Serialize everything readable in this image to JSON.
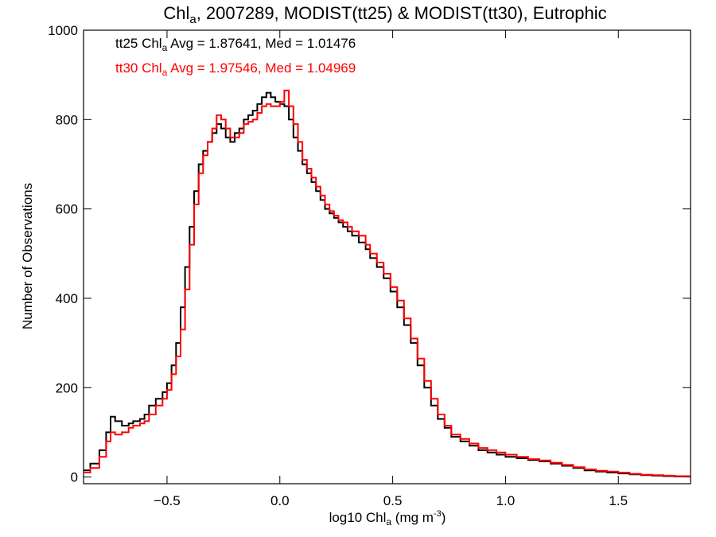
{
  "chart_data": {
    "type": "line",
    "title": {
      "pre": "Chl",
      "sub": "a",
      "post": ", 2007289, MODIST(tt25) & MODIST(tt30), Eutrophic"
    },
    "xlabel": {
      "pre": "log10 Chl",
      "sub": "a",
      "mid": " (mg m",
      "sup": "-3",
      "post": ")"
    },
    "ylabel": "Number of Observations",
    "xlim": [
      -0.87,
      1.82
    ],
    "ylim": [
      -15,
      1000
    ],
    "x_ticks": [
      -0.5,
      0.0,
      0.5,
      1.0,
      1.5
    ],
    "x_tick_labels": [
      "−0.5",
      "0.0",
      "0.5",
      "1.0",
      "1.5"
    ],
    "y_ticks": [
      0,
      200,
      400,
      600,
      800,
      1000
    ],
    "y_tick_labels": [
      "0",
      "200",
      "400",
      "600",
      "800",
      "1000"
    ],
    "grid": false,
    "legend": "top-left",
    "series": [
      {
        "name": "tt25",
        "color": "#000000",
        "annotation": {
          "pre": "tt25 Chl",
          "sub": "a",
          "post": " Avg = 1.87641, Med = 1.01476"
        },
        "x": [
          -0.87,
          -0.84,
          -0.8,
          -0.77,
          -0.75,
          -0.73,
          -0.7,
          -0.67,
          -0.65,
          -0.62,
          -0.6,
          -0.58,
          -0.55,
          -0.52,
          -0.5,
          -0.48,
          -0.46,
          -0.44,
          -0.42,
          -0.4,
          -0.38,
          -0.36,
          -0.34,
          -0.32,
          -0.3,
          -0.28,
          -0.26,
          -0.24,
          -0.22,
          -0.2,
          -0.18,
          -0.16,
          -0.14,
          -0.12,
          -0.1,
          -0.08,
          -0.06,
          -0.04,
          -0.02,
          0.0,
          0.02,
          0.04,
          0.06,
          0.08,
          0.1,
          0.12,
          0.14,
          0.16,
          0.18,
          0.2,
          0.22,
          0.24,
          0.26,
          0.28,
          0.3,
          0.32,
          0.35,
          0.38,
          0.4,
          0.43,
          0.46,
          0.49,
          0.52,
          0.55,
          0.58,
          0.61,
          0.64,
          0.67,
          0.7,
          0.73,
          0.76,
          0.8,
          0.84,
          0.88,
          0.92,
          0.96,
          1.0,
          1.05,
          1.1,
          1.15,
          1.2,
          1.25,
          1.3,
          1.35,
          1.4,
          1.45,
          1.5,
          1.55,
          1.6,
          1.65,
          1.7,
          1.75,
          1.82
        ],
        "y": [
          15,
          30,
          60,
          100,
          135,
          125,
          115,
          120,
          125,
          130,
          140,
          160,
          175,
          190,
          210,
          250,
          300,
          380,
          470,
          560,
          640,
          700,
          730,
          750,
          770,
          790,
          780,
          760,
          750,
          770,
          780,
          800,
          810,
          820,
          835,
          850,
          860,
          850,
          840,
          835,
          830,
          800,
          760,
          730,
          700,
          680,
          660,
          640,
          620,
          600,
          590,
          580,
          570,
          560,
          550,
          540,
          525,
          510,
          490,
          470,
          445,
          415,
          380,
          340,
          300,
          250,
          200,
          160,
          130,
          110,
          90,
          80,
          70,
          60,
          55,
          50,
          45,
          42,
          38,
          35,
          30,
          25,
          20,
          15,
          12,
          10,
          8,
          6,
          4,
          3,
          2,
          1,
          0
        ]
      },
      {
        "name": "tt30",
        "color": "#ff0000",
        "annotation": {
          "pre": "tt30 Chl",
          "sub": "a",
          "post": " Avg = 1.97546, Med = 1.04969"
        },
        "x": [
          -0.87,
          -0.84,
          -0.8,
          -0.77,
          -0.75,
          -0.73,
          -0.7,
          -0.67,
          -0.65,
          -0.62,
          -0.6,
          -0.58,
          -0.55,
          -0.52,
          -0.5,
          -0.48,
          -0.46,
          -0.44,
          -0.42,
          -0.4,
          -0.38,
          -0.36,
          -0.34,
          -0.32,
          -0.3,
          -0.28,
          -0.26,
          -0.24,
          -0.22,
          -0.2,
          -0.18,
          -0.16,
          -0.14,
          -0.12,
          -0.1,
          -0.08,
          -0.06,
          -0.04,
          -0.02,
          0.0,
          0.02,
          0.04,
          0.06,
          0.08,
          0.1,
          0.12,
          0.14,
          0.16,
          0.18,
          0.2,
          0.22,
          0.24,
          0.26,
          0.28,
          0.3,
          0.32,
          0.35,
          0.38,
          0.4,
          0.43,
          0.46,
          0.49,
          0.52,
          0.55,
          0.58,
          0.61,
          0.64,
          0.67,
          0.7,
          0.73,
          0.76,
          0.8,
          0.84,
          0.88,
          0.92,
          0.96,
          1.0,
          1.05,
          1.1,
          1.15,
          1.2,
          1.25,
          1.3,
          1.35,
          1.4,
          1.45,
          1.5,
          1.55,
          1.6,
          1.65,
          1.7,
          1.75,
          1.82
        ],
        "y": [
          10,
          20,
          45,
          80,
          100,
          95,
          100,
          110,
          115,
          120,
          125,
          140,
          160,
          175,
          195,
          230,
          270,
          330,
          420,
          520,
          610,
          680,
          720,
          750,
          780,
          810,
          800,
          780,
          760,
          760,
          770,
          790,
          795,
          800,
          815,
          830,
          835,
          830,
          830,
          840,
          865,
          830,
          790,
          750,
          710,
          690,
          670,
          650,
          630,
          610,
          595,
          585,
          575,
          570,
          560,
          550,
          540,
          520,
          500,
          480,
          455,
          425,
          395,
          355,
          310,
          265,
          215,
          175,
          140,
          115,
          95,
          85,
          75,
          65,
          60,
          55,
          50,
          45,
          40,
          37,
          32,
          27,
          22,
          17,
          14,
          12,
          10,
          7,
          5,
          4,
          3,
          2,
          1
        ]
      }
    ]
  }
}
